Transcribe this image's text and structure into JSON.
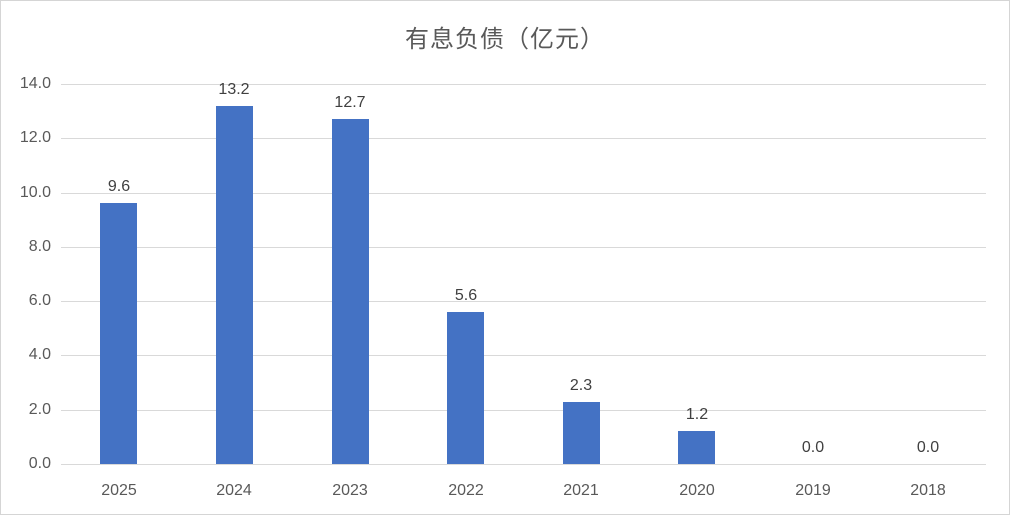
{
  "chart_data": {
    "type": "bar",
    "title": "有息负债（亿元）",
    "categories": [
      "2025",
      "2024",
      "2023",
      "2022",
      "2021",
      "2020",
      "2019",
      "2018"
    ],
    "values": [
      9.6,
      13.2,
      12.7,
      5.6,
      2.3,
      1.2,
      0.0,
      0.0
    ],
    "data_labels": [
      "9.6",
      "13.2",
      "12.7",
      "5.6",
      "2.3",
      "1.2",
      "0.0",
      "0.0"
    ],
    "y_ticks": [
      "14.0",
      "12.0",
      "10.0",
      "8.0",
      "6.0",
      "4.0",
      "2.0",
      "0.0"
    ],
    "y_tick_values": [
      14,
      12,
      10,
      8,
      6,
      4,
      2,
      0
    ],
    "ylim": [
      0,
      14
    ],
    "xlabel": "",
    "ylabel": "",
    "grid": true,
    "legend_position": "none",
    "colors": {
      "bar": "#4472C4",
      "gridline": "#D9D9D9",
      "axis_line": "#D9D9D9",
      "axis_text": "#595959",
      "data_label_text": "#404040",
      "title_text": "#595959",
      "frame_border": "#D5D5D5",
      "background": "#FFFFFF"
    }
  }
}
